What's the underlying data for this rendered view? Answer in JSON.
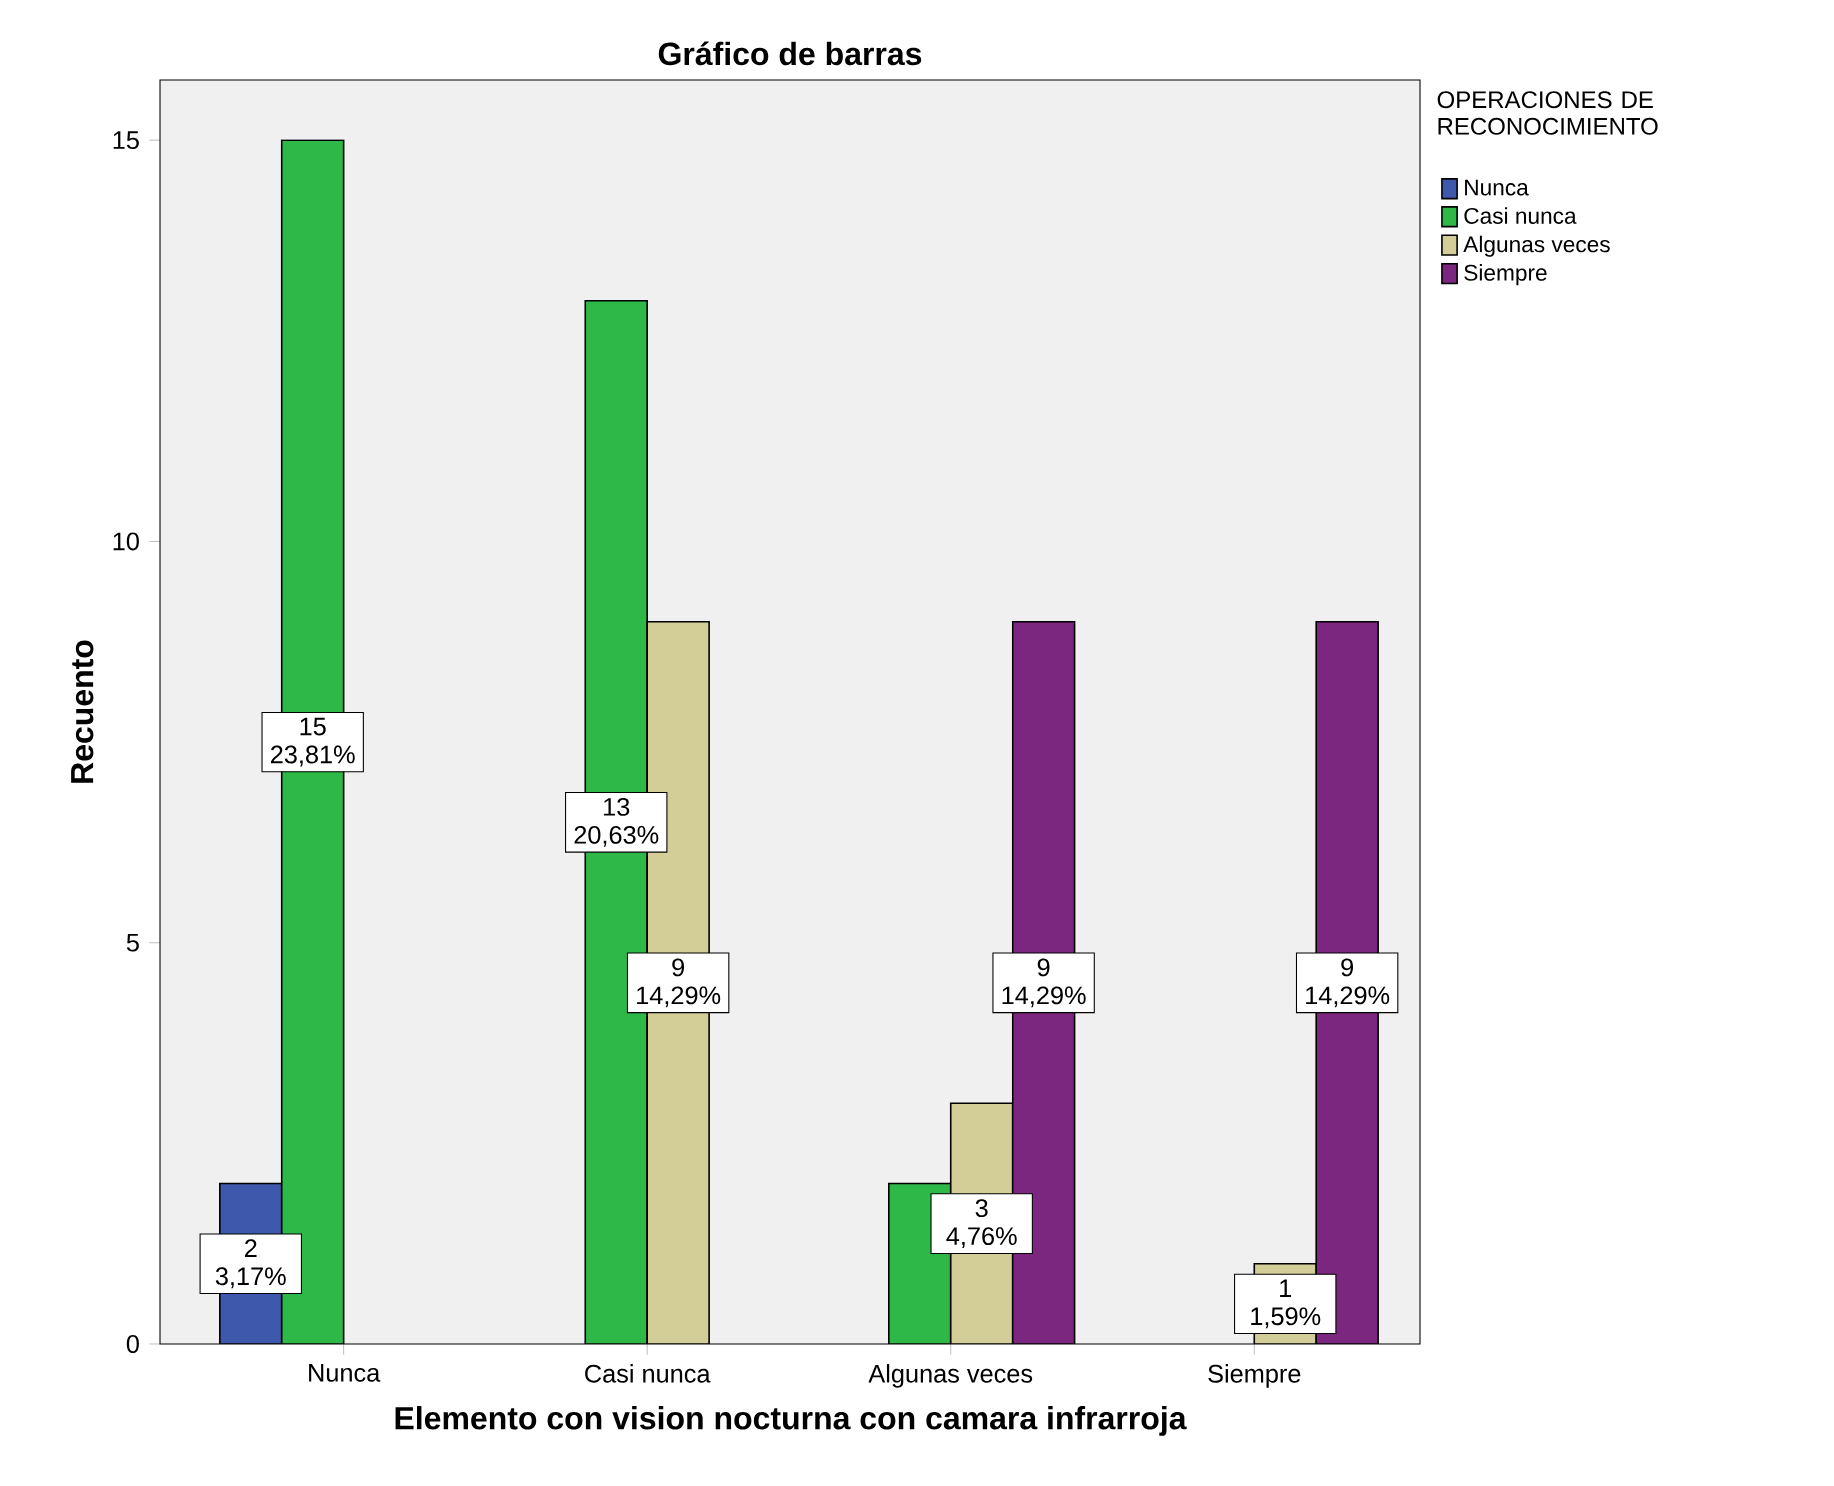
{
  "chart_data": {
    "type": "bar",
    "title": "Gráfico de barras",
    "xlabel": "Elemento con vision nocturna con camara infrarroja",
    "ylabel": "Recuento",
    "legend_title": "OPERACIONES DE RECONOCIMIENTO",
    "legend": "top right",
    "categories": [
      "Nunca",
      "Casi nunca",
      "Algunas veces",
      "Siempre"
    ],
    "ylim": [
      0,
      15.75
    ],
    "yticks": [
      0,
      5,
      10,
      15
    ],
    "grid": false,
    "series": [
      {
        "name": "Nunca",
        "color": "#3e58ac",
        "values": [
          2,
          null,
          null,
          null
        ],
        "value_labels": [
          "2 3,17%",
          null,
          null,
          null
        ]
      },
      {
        "name": "Casi nunca",
        "color": "#2eb848",
        "values": [
          15,
          13,
          2,
          null
        ],
        "value_labels": [
          "15 23,81%",
          "13 20,63%",
          null,
          null
        ]
      },
      {
        "name": "Algunas veces",
        "color": "#d3ce97",
        "values": [
          null,
          9,
          3,
          1
        ],
        "value_labels": [
          null,
          "9 14,29%",
          "3 4,76%",
          "1 1,59%"
        ]
      },
      {
        "name": "Siempre",
        "color": "#7b277f",
        "values": [
          null,
          null,
          9,
          9
        ],
        "value_labels": [
          null,
          null,
          "9 14,29%",
          "9 14,29%"
        ]
      }
    ]
  }
}
